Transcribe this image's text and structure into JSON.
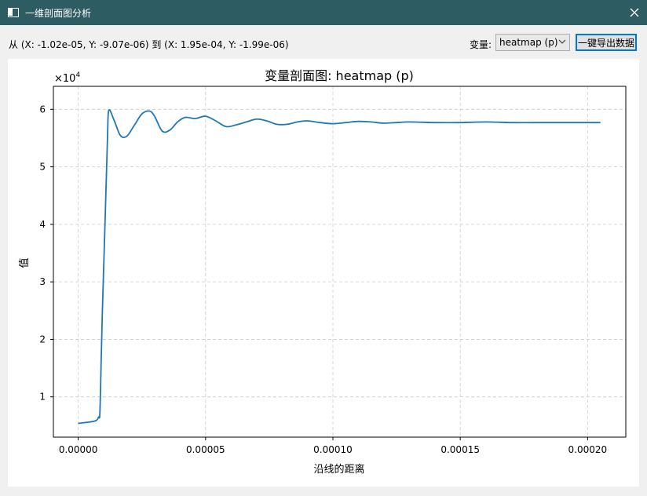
{
  "window": {
    "title": "一维剖面图分析"
  },
  "toolbar": {
    "coords_text": "从 (X: -1.02e-05, Y: -9.07e-06) 到 (X: 1.95e-04, Y: -1.99e-06)",
    "variable_label": "变量:",
    "variable_selected": "heatmap (p)",
    "export_label": "一键导出数据"
  },
  "chart_data": {
    "type": "line",
    "title": "变量剖面图: heatmap (p)",
    "xlabel": "沿线的距离",
    "ylabel": "值",
    "y_offset_text": "×10",
    "y_offset_exp": "4",
    "xlim": [
      -9.75e-06,
      0.000215
    ],
    "ylim": [
      0.3,
      6.4
    ],
    "xticks": [
      0,
      5e-05,
      0.0001,
      0.00015,
      0.0002
    ],
    "xtick_labels": [
      "0.00000",
      "0.00005",
      "0.00010",
      "0.00015",
      "0.00020"
    ],
    "yticks": [
      1,
      2,
      3,
      4,
      5,
      6
    ],
    "ytick_labels": [
      "1",
      "2",
      "3",
      "4",
      "5",
      "6"
    ],
    "grid": true,
    "color": "#1f77b4",
    "series": [
      {
        "x": [
          0,
          6.5e-06,
          8e-06,
          8.5e-06,
          9e-06,
          9.5e-06,
          1.05e-05,
          1.15e-05,
          1.2e-05,
          1.4e-05,
          1.65e-05,
          1.9e-05,
          2.2e-05,
          2.5e-05,
          2.8e-05,
          3e-05,
          3.3e-05,
          3.6e-05,
          3.9e-05,
          4.2e-05,
          4.6e-05,
          5e-05,
          5.4e-05,
          5.8e-05,
          6.2e-05,
          6.6e-05,
          7e-05,
          7.4e-05,
          7.8e-05,
          8.2e-05,
          8.6e-05,
          9e-05,
          9.5e-05,
          0.0001,
          0.000105,
          0.00011,
          0.000115,
          0.00012,
          0.000125,
          0.00013,
          0.00014,
          0.00015,
          0.00016,
          0.00017,
          0.00018,
          0.00019,
          0.0002,
          0.000205
        ],
        "y": [
          0.54,
          0.58,
          0.65,
          0.72,
          1.6,
          2.5,
          4.0,
          5.5,
          5.98,
          5.82,
          5.55,
          5.53,
          5.72,
          5.92,
          5.97,
          5.88,
          5.62,
          5.64,
          5.78,
          5.86,
          5.84,
          5.88,
          5.8,
          5.7,
          5.73,
          5.78,
          5.83,
          5.8,
          5.74,
          5.74,
          5.78,
          5.8,
          5.77,
          5.75,
          5.77,
          5.79,
          5.78,
          5.76,
          5.77,
          5.78,
          5.77,
          5.77,
          5.78,
          5.77,
          5.77,
          5.77,
          5.77,
          5.77
        ]
      }
    ]
  }
}
